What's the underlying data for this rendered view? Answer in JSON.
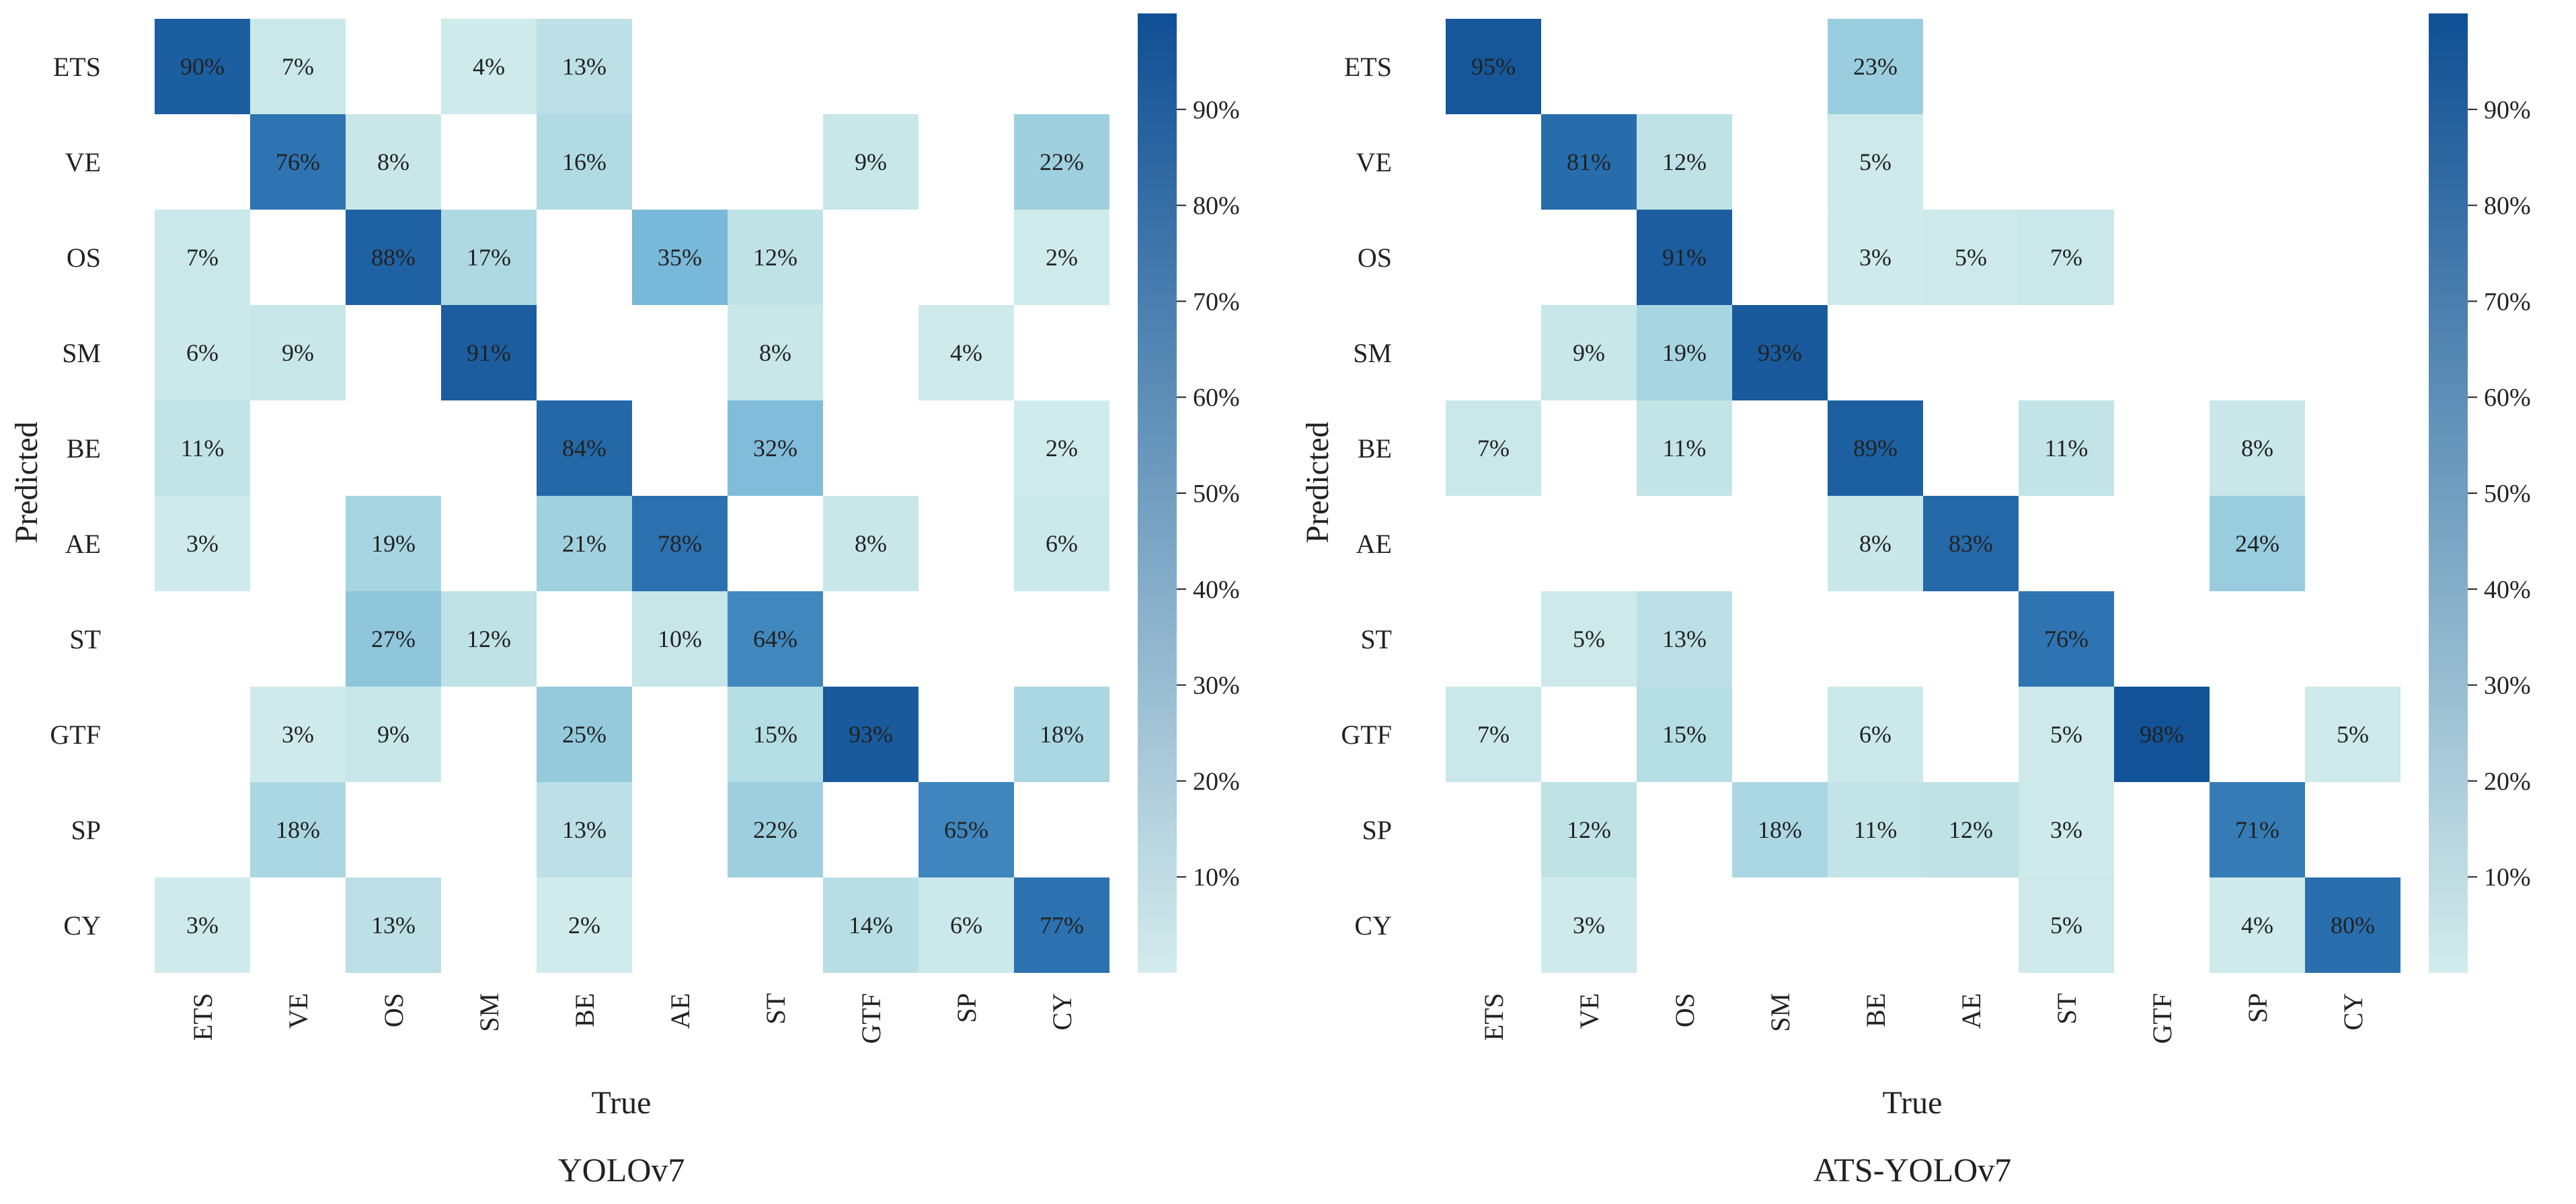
{
  "colors": {
    "scale_low": "#d3ecec",
    "scale_high": "#0f4f94",
    "text": "#222222",
    "background": "#ffffff"
  },
  "chart_data": [
    {
      "type": "heatmap",
      "title": "YOLOv7",
      "xlabel": "True",
      "ylabel": "Predicted",
      "x_categories": [
        "ETS",
        "VE",
        "OS",
        "SM",
        "BE",
        "AE",
        "ST",
        "GTF",
        "SP",
        "CY"
      ],
      "y_categories": [
        "ETS",
        "VE",
        "OS",
        "SM",
        "BE",
        "AE",
        "ST",
        "GTF",
        "SP",
        "CY"
      ],
      "value_range": [
        0,
        100
      ],
      "colorbar_ticks": [
        "10%",
        "20%",
        "30%",
        "40%",
        "50%",
        "60%",
        "70%",
        "80%",
        "90%"
      ],
      "colorbar_tick_values": [
        10,
        20,
        30,
        40,
        50,
        60,
        70,
        80,
        90
      ],
      "values": [
        [
          90,
          7,
          null,
          4,
          13,
          null,
          null,
          null,
          null,
          null
        ],
        [
          null,
          76,
          8,
          null,
          16,
          null,
          null,
          9,
          null,
          22
        ],
        [
          7,
          null,
          88,
          17,
          null,
          35,
          12,
          null,
          null,
          2
        ],
        [
          6,
          9,
          null,
          91,
          null,
          null,
          8,
          null,
          4,
          null
        ],
        [
          11,
          null,
          null,
          null,
          84,
          null,
          32,
          null,
          null,
          2
        ],
        [
          3,
          null,
          19,
          null,
          21,
          78,
          null,
          8,
          null,
          6
        ],
        [
          null,
          null,
          27,
          12,
          null,
          10,
          64,
          null,
          null,
          null
        ],
        [
          null,
          3,
          9,
          null,
          25,
          null,
          15,
          93,
          null,
          18
        ],
        [
          null,
          18,
          null,
          null,
          13,
          null,
          22,
          null,
          65,
          null
        ],
        [
          3,
          null,
          13,
          null,
          2,
          null,
          null,
          14,
          6,
          77
        ]
      ],
      "cell_labels": [
        [
          "90%",
          "7%",
          "",
          "4%",
          "13%",
          "",
          "",
          "",
          "",
          ""
        ],
        [
          "",
          "76%",
          "8%",
          "",
          "16%",
          "",
          "",
          "9%",
          "",
          "22%"
        ],
        [
          "7%",
          "",
          "88%",
          "17%",
          "",
          "35%",
          "12%",
          "",
          "",
          "2%"
        ],
        [
          "6%",
          "9%",
          "",
          "91%",
          "",
          "",
          "8%",
          "",
          "4%",
          ""
        ],
        [
          "11%",
          "",
          "",
          "",
          "84%",
          "",
          "32%",
          "",
          "",
          "2%"
        ],
        [
          "3%",
          "",
          "19%",
          "",
          "21%",
          "78%",
          "",
          "8%",
          "",
          "6%"
        ],
        [
          "",
          "",
          "27%",
          "12%",
          "",
          "10%",
          "64%",
          "",
          "",
          ""
        ],
        [
          "",
          "3%",
          "9%",
          "",
          "25%",
          "",
          "15%",
          "93%",
          "",
          "18%"
        ],
        [
          "",
          "18%",
          "",
          "",
          "13%",
          "",
          "22%",
          "",
          "65%",
          ""
        ],
        [
          "3%",
          "",
          "13%",
          "",
          "2%",
          "",
          "",
          "14%",
          "6%",
          "77%"
        ]
      ]
    },
    {
      "type": "heatmap",
      "title": "ATS-YOLOv7",
      "xlabel": "True",
      "ylabel": "Predicted",
      "x_categories": [
        "ETS",
        "VE",
        "OS",
        "SM",
        "BE",
        "AE",
        "ST",
        "GTF",
        "SP",
        "CY"
      ],
      "y_categories": [
        "ETS",
        "VE",
        "OS",
        "SM",
        "BE",
        "AE",
        "ST",
        "GTF",
        "SP",
        "CY"
      ],
      "value_range": [
        0,
        100
      ],
      "colorbar_ticks": [
        "10%",
        "20%",
        "30%",
        "40%",
        "50%",
        "60%",
        "70%",
        "80%",
        "90%"
      ],
      "colorbar_tick_values": [
        10,
        20,
        30,
        40,
        50,
        60,
        70,
        80,
        90
      ],
      "values": [
        [
          95,
          null,
          null,
          null,
          23,
          null,
          null,
          null,
          null,
          null
        ],
        [
          null,
          81,
          12,
          null,
          5,
          null,
          null,
          null,
          null,
          null
        ],
        [
          null,
          null,
          91,
          null,
          3,
          5,
          7,
          null,
          null,
          null
        ],
        [
          null,
          9,
          19,
          93,
          null,
          null,
          null,
          null,
          null,
          null
        ],
        [
          7,
          null,
          11,
          null,
          89,
          null,
          11,
          null,
          8,
          null
        ],
        [
          null,
          null,
          null,
          null,
          8,
          83,
          null,
          null,
          24,
          null
        ],
        [
          null,
          5,
          13,
          null,
          null,
          null,
          76,
          null,
          null,
          null
        ],
        [
          7,
          null,
          15,
          null,
          6,
          null,
          5,
          98,
          null,
          5
        ],
        [
          null,
          12,
          null,
          18,
          11,
          12,
          3,
          null,
          71,
          null
        ],
        [
          null,
          3,
          null,
          null,
          null,
          null,
          5,
          null,
          4,
          80
        ]
      ],
      "cell_labels": [
        [
          "95%",
          "",
          "",
          "",
          "23%",
          "",
          "",
          "",
          "",
          ""
        ],
        [
          "",
          "81%",
          "12%",
          "",
          "5%",
          "",
          "",
          "",
          "",
          ""
        ],
        [
          "",
          "",
          "91%",
          "",
          "3%",
          "5%",
          "7%",
          "",
          "",
          ""
        ],
        [
          "",
          "9%",
          "19%",
          "93%",
          "",
          "",
          "",
          "",
          "",
          ""
        ],
        [
          "7%",
          "",
          "11%",
          "",
          "89%",
          "",
          "11%",
          "",
          "8%",
          ""
        ],
        [
          "",
          "",
          "",
          "",
          "8%",
          "83%",
          "",
          "",
          "24%",
          ""
        ],
        [
          "",
          "5%",
          "13%",
          "",
          "",
          "",
          "76%",
          "",
          "",
          ""
        ],
        [
          "7%",
          "",
          "15%",
          "",
          "6%",
          "",
          "5%",
          "98%",
          "",
          "5%"
        ],
        [
          "",
          "12%",
          "",
          "18%",
          "11%",
          "12%",
          "3%",
          "",
          "71%",
          ""
        ],
        [
          "",
          "3%",
          "",
          "",
          "",
          "",
          "5%",
          "",
          "4%",
          "80%"
        ]
      ]
    }
  ]
}
